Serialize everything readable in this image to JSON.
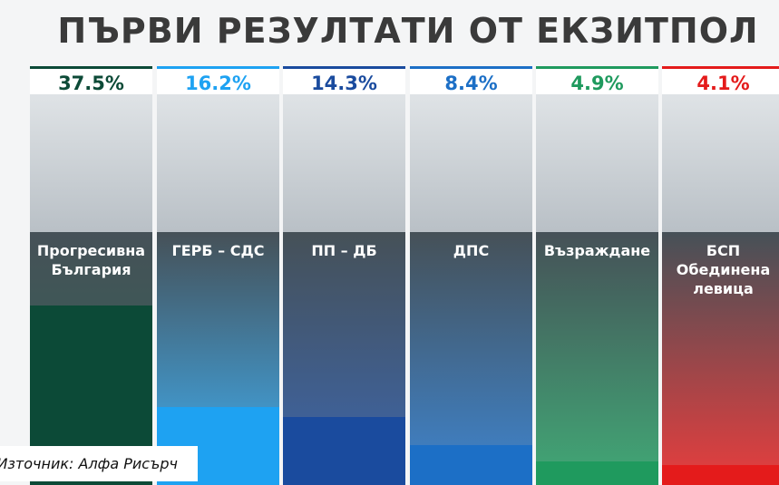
{
  "chart_data": {
    "type": "bar",
    "title": "ПЪРВИ РЕЗУЛТАТИ ОТ ЕКЗИТПОЛ",
    "categories": [
      "Прогресивна България",
      "ГЕРБ – СДС",
      "ПП – ДБ",
      "ДПС",
      "Възраждане",
      "БСП Обединена левица"
    ],
    "values": [
      37.5,
      16.2,
      14.3,
      8.4,
      4.9,
      4.1
    ],
    "value_labels": [
      "37.5%",
      "16.2%",
      "14.3%",
      "8.4%",
      "4.9%",
      "4.1%"
    ],
    "colors": [
      "#0c4a37",
      "#1ea2f2",
      "#1a4b9e",
      "#1c6fc6",
      "#1f9a5e",
      "#e41b1b"
    ],
    "source": "Източник: Алфа Рисърч"
  }
}
